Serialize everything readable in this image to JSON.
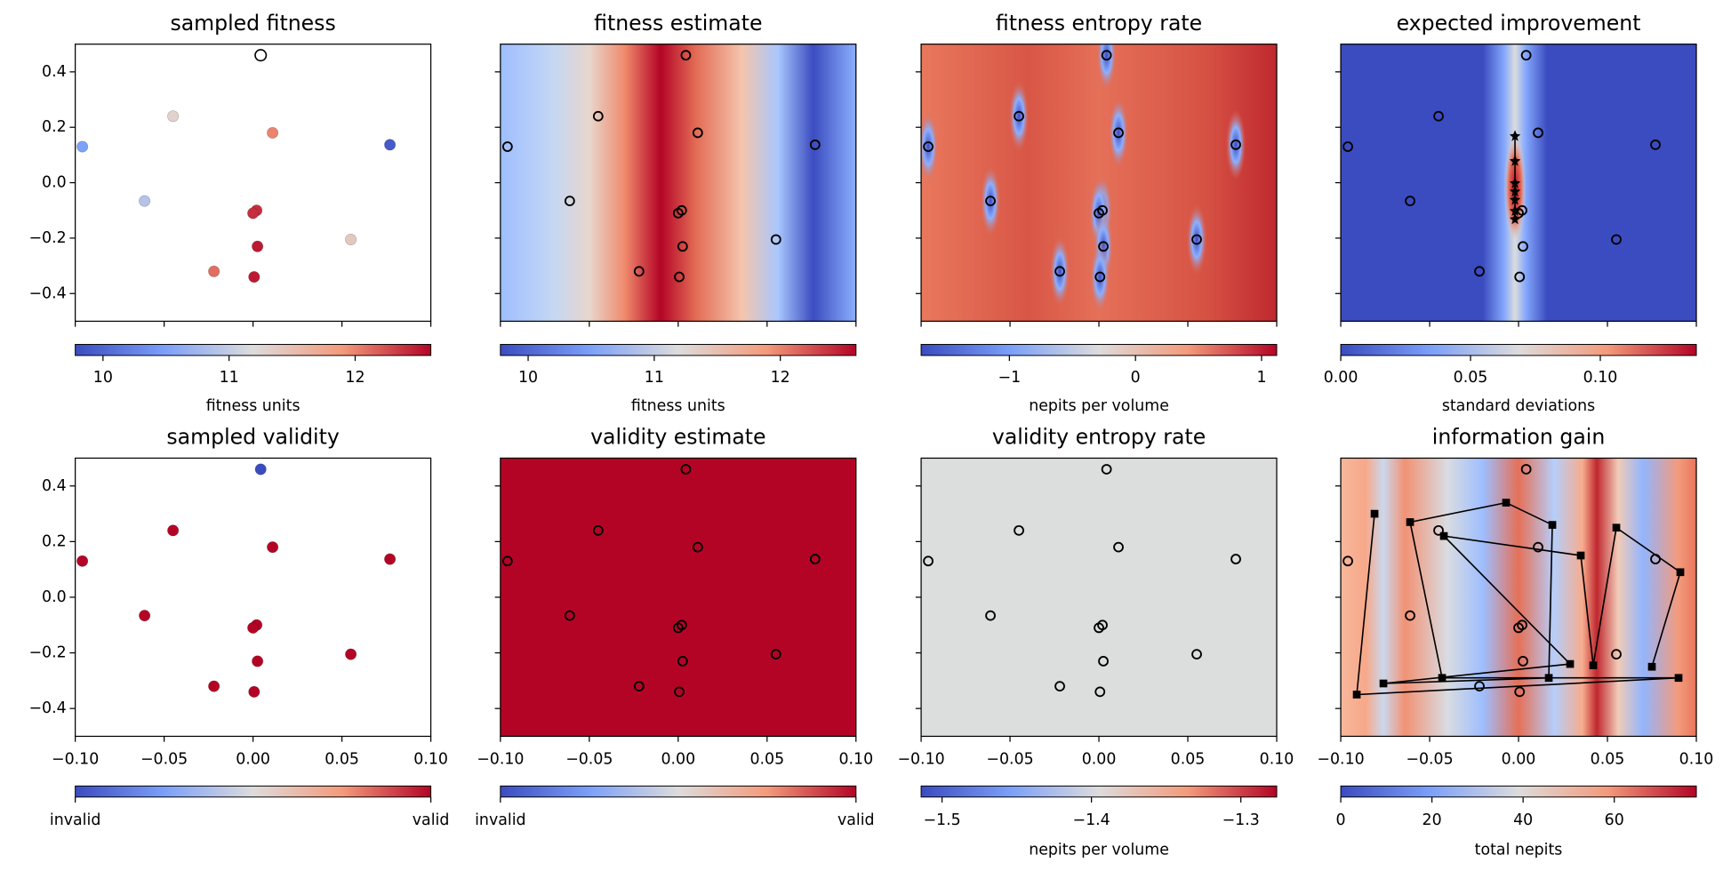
{
  "panels": [
    {
      "title": "sampled fitness",
      "colorbar": {
        "label": "fitness units",
        "lim": [
          9.78,
          12.6
        ],
        "ticks": [
          10,
          11,
          12
        ]
      }
    },
    {
      "title": "fitness estimate",
      "colorbar": {
        "label": "fitness units",
        "lim": [
          9.78,
          12.6
        ],
        "ticks": [
          10,
          11,
          12
        ]
      }
    },
    {
      "title": "fitness entropy rate",
      "colorbar": {
        "label": "nepits per volume",
        "lim": [
          -1.7,
          1.12
        ],
        "ticks": [
          {
            "value": -1,
            "label": "−1"
          },
          0,
          1
        ]
      }
    },
    {
      "title": "expected improvement",
      "colorbar": {
        "label": "standard deviations",
        "lim": [
          0,
          0.137
        ],
        "ticks": [
          {
            "value": 0,
            "label": "0.00"
          },
          0.05,
          {
            "value": 0.1,
            "label": "0.10"
          }
        ]
      }
    },
    {
      "title": "sampled validity",
      "colorbar": {
        "lim": [
          0,
          1
        ],
        "ticks": [
          {
            "value": 0,
            "label": "invalid"
          },
          {
            "value": 1,
            "label": "valid"
          }
        ]
      }
    },
    {
      "title": "validity estimate",
      "colorbar": {
        "lim": [
          0,
          1
        ],
        "ticks": [
          {
            "value": 0,
            "label": "invalid"
          },
          {
            "value": 1,
            "label": "valid"
          }
        ]
      }
    },
    {
      "title": "validity entropy rate",
      "colorbar": {
        "label": "nepits per volume",
        "lim": [
          -1.514,
          -1.276
        ],
        "ticks": [
          {
            "value": -1.5,
            "label": "−1.5"
          },
          {
            "value": -1.4,
            "label": "−1.4"
          },
          {
            "value": -1.3,
            "label": "−1.3"
          }
        ]
      }
    },
    {
      "title": "information gain",
      "colorbar": {
        "label": "total nepits",
        "lim": [
          0,
          78
        ],
        "ticks": [
          0,
          20,
          40,
          60
        ]
      }
    }
  ],
  "axes": {
    "xlim": [
      -0.1,
      0.1
    ],
    "ylim": [
      -0.5,
      0.5
    ],
    "xticks": [
      {
        "value": -0.1,
        "label": "−0.10"
      },
      {
        "value": -0.05,
        "label": "−0.05"
      },
      {
        "value": 0,
        "label": "0.00"
      },
      0.05,
      {
        "value": 0.1,
        "label": "0.10"
      }
    ],
    "yticks": [
      0.4,
      0.2,
      {
        "value": 0,
        "label": "0.0"
      },
      {
        "value": -0.2,
        "label": "−0.2"
      },
      {
        "value": -0.4,
        "label": "−0.4"
      }
    ]
  },
  "samples": {
    "x": [
      0.0043,
      -0.045,
      0.011,
      -0.096,
      0.077,
      -0.061,
      0.002,
      0.0,
      0.0025,
      0.055,
      -0.022,
      0.0006
    ],
    "y": [
      0.46,
      0.24,
      0.18,
      0.13,
      0.137,
      -0.066,
      -0.1,
      -0.11,
      -0.23,
      -0.205,
      -0.32,
      -0.34
    ],
    "fitness": [
      null,
      11.3,
      12.0,
      10.5,
      9.9,
      10.9,
      12.4,
      12.4,
      12.5,
      11.4,
      12.1,
      12.5
    ],
    "validity": [
      0,
      1,
      1,
      1,
      1,
      1,
      1,
      1,
      1,
      1,
      1,
      1
    ]
  },
  "ei_path": {
    "x": [
      -0.002,
      -0.002,
      -0.002,
      -0.002,
      -0.002,
      -0.002,
      -0.002
    ],
    "y": [
      0.17,
      0.08,
      0.0,
      -0.03,
      -0.06,
      -0.1,
      -0.13
    ]
  },
  "info_gain_path": {
    "x": [
      -0.081,
      -0.091,
      0.09,
      -0.043,
      -0.061,
      -0.007,
      0.019,
      0.017,
      -0.076,
      0.029,
      -0.042,
      0.035,
      0.042,
      0.055,
      0.091,
      0.075
    ],
    "y": [
      0.3,
      -0.35,
      -0.29,
      -0.29,
      0.27,
      0.34,
      0.26,
      -0.29,
      -0.31,
      -0.24,
      0.22,
      0.15,
      -0.245,
      0.25,
      0.09,
      -0.25
    ]
  }
}
